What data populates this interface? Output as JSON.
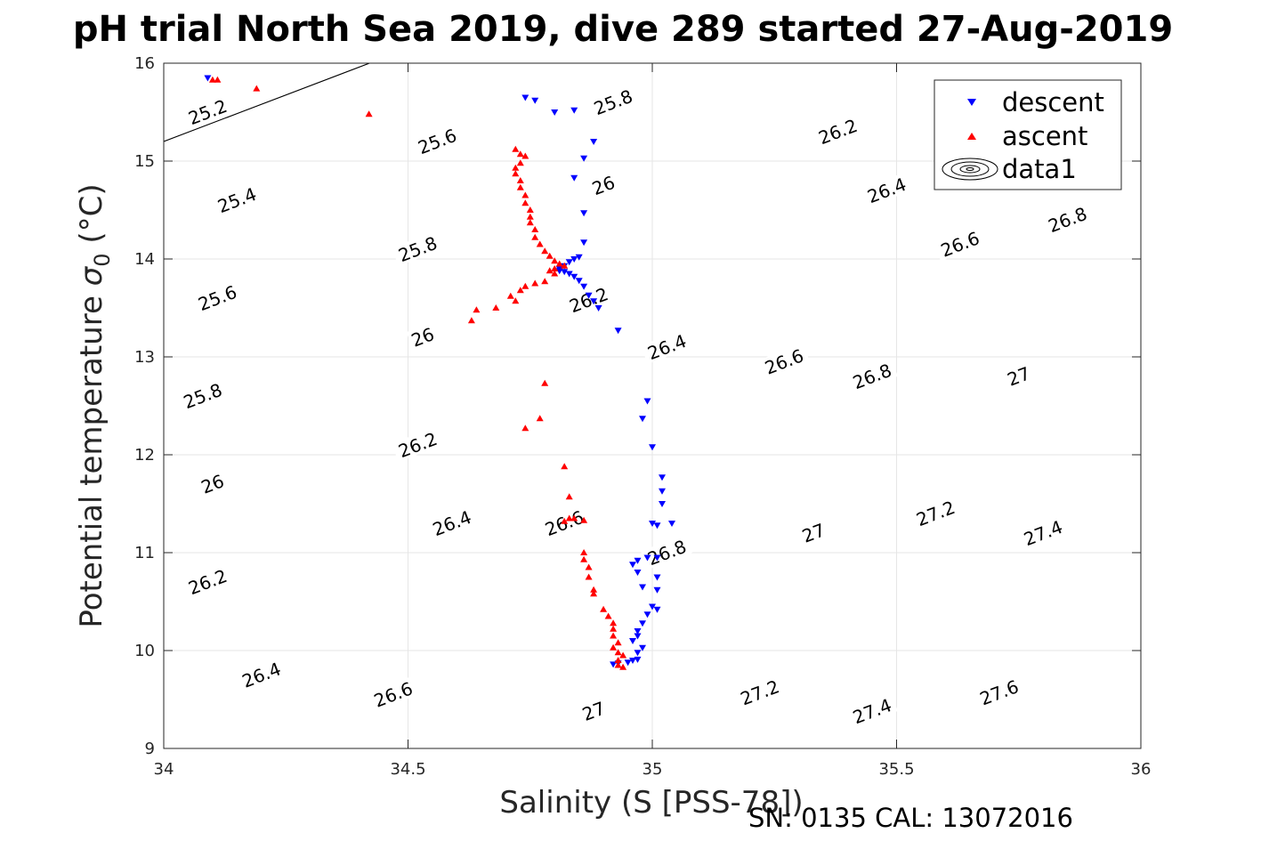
{
  "chart_data": {
    "type": "scatter",
    "title": "pH trial North Sea 2019, dive 289 started 27-Aug-2019",
    "xlabel": "Salinity (S [PSS-78])",
    "ylabel_main": "Potential temperature ",
    "ylabel_sigma": "σ",
    "ylabel_sub": "0",
    "ylabel_unit": " (°C)",
    "xlim": [
      34,
      36
    ],
    "ylim": [
      9,
      16
    ],
    "x_ticks": [
      34,
      34.5,
      35,
      35.5,
      36
    ],
    "x_tick_labels": [
      "34",
      "34.5",
      "35",
      "35.5",
      "36"
    ],
    "y_ticks": [
      9,
      10,
      11,
      12,
      13,
      14,
      15,
      16
    ],
    "y_tick_labels": [
      "9",
      "10",
      "11",
      "12",
      "13",
      "14",
      "15",
      "16"
    ],
    "grid": true,
    "legend_position": "top-right",
    "legend": [
      "descent",
      "ascent",
      "data1"
    ],
    "footer": "SN: 0135  CAL: 13072016",
    "colors": {
      "descent": "#0000ff",
      "ascent": "#ff0000",
      "contour": "#000000",
      "grid": "#e6e6e6"
    },
    "contours": {
      "slope": 1.9,
      "intercepts": [
        -49.4,
        -48.45,
        -47.5,
        -46.55,
        -45.6,
        -44.65,
        -43.7,
        -42.75,
        -41.8,
        -40.85,
        -39.9,
        -38.95,
        -38.0,
        -37.05,
        -36.1,
        -35.15,
        -34.2
      ],
      "labels": [
        {
          "text": "25.2",
          "s": 34.09,
          "t": 15.5
        },
        {
          "text": "25.4",
          "s": 34.15,
          "t": 14.6
        },
        {
          "text": "25.6",
          "s": 34.11,
          "t": 13.6
        },
        {
          "text": "25.8",
          "s": 34.08,
          "t": 12.6
        },
        {
          "text": "26",
          "s": 34.1,
          "t": 11.7
        },
        {
          "text": "26.2",
          "s": 34.09,
          "t": 10.7
        },
        {
          "text": "26.4",
          "s": 34.2,
          "t": 9.75
        },
        {
          "text": "25.6",
          "s": 34.56,
          "t": 15.2
        },
        {
          "text": "25.8",
          "s": 34.52,
          "t": 14.1
        },
        {
          "text": "26",
          "s": 34.53,
          "t": 13.2
        },
        {
          "text": "26.2",
          "s": 34.52,
          "t": 12.1
        },
        {
          "text": "26.4",
          "s": 34.59,
          "t": 11.3
        },
        {
          "text": "26.6",
          "s": 34.47,
          "t": 9.55
        },
        {
          "text": "25.8",
          "s": 34.92,
          "t": 15.6
        },
        {
          "text": "26",
          "s": 34.9,
          "t": 14.75
        },
        {
          "text": "26.2",
          "s": 34.87,
          "t": 13.58
        },
        {
          "text": "26.4",
          "s": 35.03,
          "t": 13.1
        },
        {
          "text": "26.6",
          "s": 34.82,
          "t": 11.3
        },
        {
          "text": "26.8",
          "s": 35.03,
          "t": 11.0
        },
        {
          "text": "27",
          "s": 34.88,
          "t": 9.38
        },
        {
          "text": "26.2",
          "s": 35.38,
          "t": 15.3
        },
        {
          "text": "26.4",
          "s": 35.48,
          "t": 14.7
        },
        {
          "text": "26.6",
          "s": 35.63,
          "t": 14.15
        },
        {
          "text": "26.8",
          "s": 35.85,
          "t": 14.4
        },
        {
          "text": "26.6",
          "s": 35.27,
          "t": 12.95
        },
        {
          "text": "26.8",
          "s": 35.45,
          "t": 12.8
        },
        {
          "text": "27",
          "s": 35.75,
          "t": 12.8
        },
        {
          "text": "27",
          "s": 35.33,
          "t": 11.2
        },
        {
          "text": "27.2",
          "s": 35.58,
          "t": 11.4
        },
        {
          "text": "27.4",
          "s": 35.8,
          "t": 11.2
        },
        {
          "text": "27.2",
          "s": 35.22,
          "t": 9.57
        },
        {
          "text": "27.4",
          "s": 35.45,
          "t": 9.38
        },
        {
          "text": "27.6",
          "s": 35.71,
          "t": 9.57
        }
      ]
    },
    "series": [
      {
        "name": "descent",
        "marker": "triangle-down",
        "points": [
          [
            34.09,
            15.85
          ],
          [
            34.74,
            15.65
          ],
          [
            34.76,
            15.62
          ],
          [
            34.8,
            15.5
          ],
          [
            34.84,
            15.52
          ],
          [
            34.88,
            15.2
          ],
          [
            34.86,
            15.03
          ],
          [
            34.84,
            14.83
          ],
          [
            34.86,
            14.47
          ],
          [
            34.86,
            14.17
          ],
          [
            34.85,
            14.02
          ],
          [
            34.84,
            14.0
          ],
          [
            34.83,
            13.97
          ],
          [
            34.82,
            13.93
          ],
          [
            34.81,
            13.9
          ],
          [
            34.81,
            13.88
          ],
          [
            34.82,
            13.87
          ],
          [
            34.83,
            13.85
          ],
          [
            34.84,
            13.82
          ],
          [
            34.85,
            13.78
          ],
          [
            34.86,
            13.72
          ],
          [
            34.87,
            13.63
          ],
          [
            34.88,
            13.57
          ],
          [
            34.89,
            13.5
          ],
          [
            34.93,
            13.27
          ],
          [
            34.99,
            12.55
          ],
          [
            34.98,
            12.37
          ],
          [
            35.0,
            12.08
          ],
          [
            35.02,
            11.77
          ],
          [
            35.02,
            11.63
          ],
          [
            35.02,
            11.5
          ],
          [
            35.04,
            11.3
          ],
          [
            35.0,
            11.3
          ],
          [
            35.01,
            11.28
          ],
          [
            35.01,
            10.95
          ],
          [
            34.99,
            10.95
          ],
          [
            34.97,
            10.92
          ],
          [
            34.96,
            10.88
          ],
          [
            34.97,
            10.8
          ],
          [
            35.01,
            10.75
          ],
          [
            34.98,
            10.65
          ],
          [
            35.01,
            10.62
          ],
          [
            35.0,
            10.45
          ],
          [
            35.01,
            10.42
          ],
          [
            34.99,
            10.37
          ],
          [
            34.98,
            10.28
          ],
          [
            34.97,
            10.2
          ],
          [
            34.97,
            10.15
          ],
          [
            34.96,
            10.1
          ],
          [
            34.98,
            10.03
          ],
          [
            34.97,
            9.98
          ],
          [
            34.96,
            9.9
          ],
          [
            34.97,
            9.91
          ],
          [
            34.95,
            9.88
          ],
          [
            34.93,
            9.87
          ],
          [
            34.92,
            9.86
          ]
        ]
      },
      {
        "name": "ascent",
        "marker": "triangle-up",
        "points": [
          [
            34.1,
            15.83
          ],
          [
            34.11,
            15.83
          ],
          [
            34.19,
            15.74
          ],
          [
            34.42,
            15.48
          ],
          [
            34.72,
            15.12
          ],
          [
            34.73,
            15.07
          ],
          [
            34.74,
            15.05
          ],
          [
            34.73,
            14.98
          ],
          [
            34.72,
            14.93
          ],
          [
            34.72,
            14.87
          ],
          [
            34.73,
            14.8
          ],
          [
            34.73,
            14.73
          ],
          [
            34.74,
            14.65
          ],
          [
            34.74,
            14.57
          ],
          [
            34.75,
            14.5
          ],
          [
            34.75,
            14.43
          ],
          [
            34.75,
            14.37
          ],
          [
            34.76,
            14.3
          ],
          [
            34.76,
            14.22
          ],
          [
            34.77,
            14.15
          ],
          [
            34.78,
            14.08
          ],
          [
            34.79,
            14.03
          ],
          [
            34.8,
            13.98
          ],
          [
            34.81,
            13.95
          ],
          [
            34.82,
            13.93
          ],
          [
            34.8,
            13.9
          ],
          [
            34.79,
            13.88
          ],
          [
            34.8,
            13.85
          ],
          [
            34.78,
            13.77
          ],
          [
            34.76,
            13.75
          ],
          [
            34.74,
            13.72
          ],
          [
            34.73,
            13.68
          ],
          [
            34.71,
            13.62
          ],
          [
            34.72,
            13.57
          ],
          [
            34.68,
            13.5
          ],
          [
            34.64,
            13.48
          ],
          [
            34.63,
            13.37
          ],
          [
            34.78,
            12.73
          ],
          [
            34.77,
            12.37
          ],
          [
            34.74,
            12.27
          ],
          [
            34.82,
            11.88
          ],
          [
            34.83,
            11.57
          ],
          [
            34.83,
            11.35
          ],
          [
            34.82,
            11.32
          ],
          [
            34.84,
            11.35
          ],
          [
            34.86,
            11.33
          ],
          [
            34.86,
            11.0
          ],
          [
            34.86,
            10.93
          ],
          [
            34.87,
            10.85
          ],
          [
            34.87,
            10.75
          ],
          [
            34.88,
            10.62
          ],
          [
            34.88,
            10.58
          ],
          [
            34.9,
            10.42
          ],
          [
            34.91,
            10.35
          ],
          [
            34.92,
            10.28
          ],
          [
            34.92,
            10.22
          ],
          [
            34.92,
            10.15
          ],
          [
            34.93,
            10.08
          ],
          [
            34.92,
            10.03
          ],
          [
            34.93,
            9.98
          ],
          [
            34.94,
            9.95
          ],
          [
            34.93,
            9.9
          ],
          [
            34.93,
            9.85
          ],
          [
            34.94,
            9.83
          ]
        ]
      }
    ]
  }
}
